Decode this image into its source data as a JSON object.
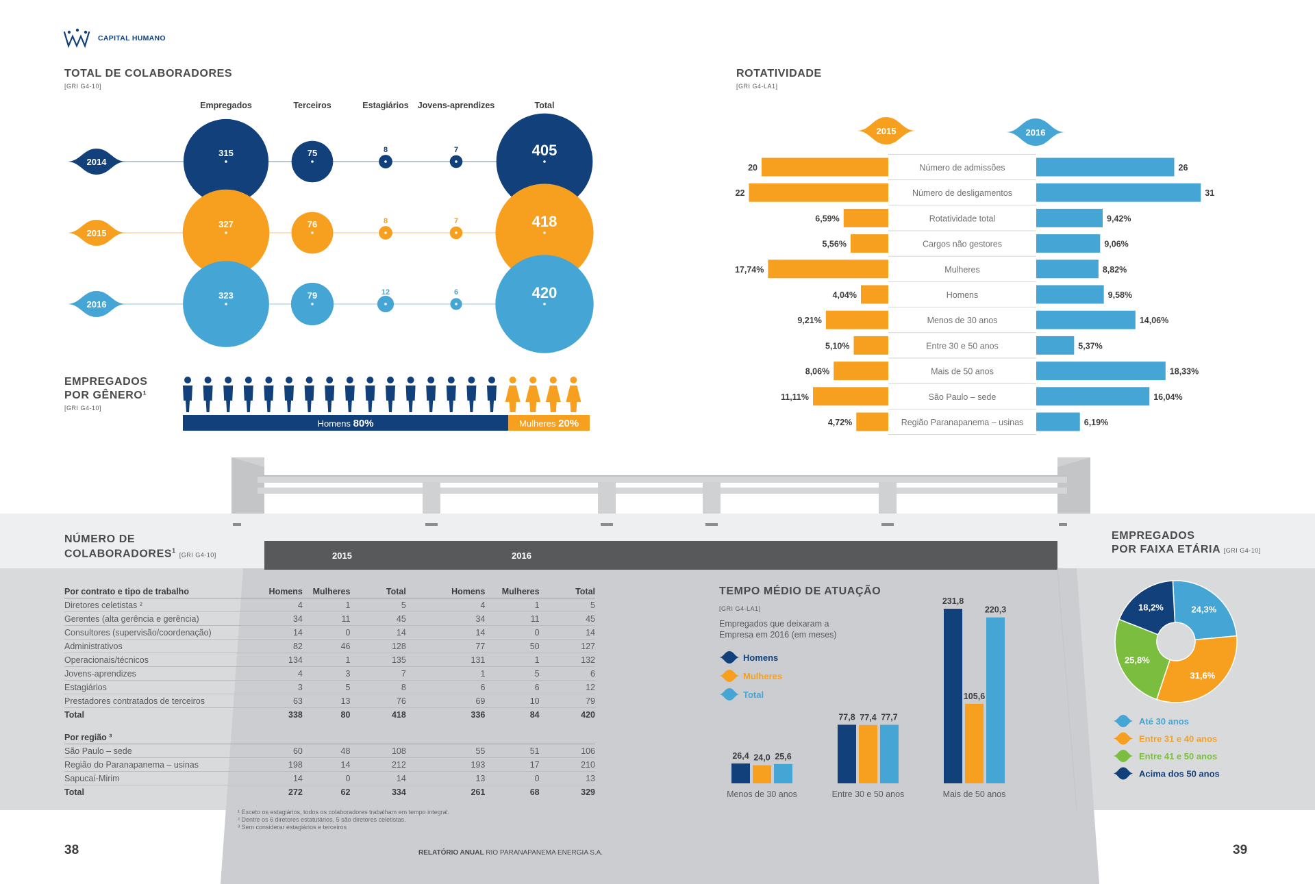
{
  "header": {
    "section_title": "CAPITAL HUMANO",
    "logo_icon": "company-logo-icon"
  },
  "total": {
    "title": "TOTAL DE COLABORADORES",
    "gri": "[GRI G4-10]",
    "columns": [
      "Empregados",
      "Terceiros",
      "Estagiários",
      "Jovens-aprendizes",
      "Total"
    ],
    "rows": [
      {
        "year": "2014",
        "values": [
          "315",
          "75",
          "8",
          "7"
        ],
        "total": "405",
        "color": "#12407a"
      },
      {
        "year": "2015",
        "values": [
          "327",
          "76",
          "8",
          "7"
        ],
        "total": "418",
        "color": "#f7a01f"
      },
      {
        "year": "2016",
        "values": [
          "323",
          "79",
          "12",
          "6"
        ],
        "total": "420",
        "color": "#45a5d4"
      }
    ]
  },
  "genero": {
    "title_line1": "EMPREGADOS",
    "title_line2": "POR GÊNERO¹",
    "gri": "[GRI G4-10]",
    "men_label": "Homens",
    "men_pct": "80%",
    "women_label": "Mulheres",
    "women_pct": "20%",
    "men_icons": 16,
    "women_icons": 4
  },
  "rotatividade": {
    "title": "ROTATIVIDADE",
    "gri": "[GRI G4-LA1]",
    "year_left": "2015",
    "year_right": "2016",
    "rows": [
      {
        "label": "Número de admissões",
        "left": "20",
        "right": "26"
      },
      {
        "label": "Número de desligamentos",
        "left": "22",
        "right": "31"
      },
      {
        "label": "Rotatividade total",
        "left": "6,59%",
        "right": "9,42%"
      },
      {
        "label": "Cargos não gestores",
        "left": "5,56%",
        "right": "9,06%"
      },
      {
        "label": "Mulheres",
        "left": "17,74%",
        "right": "8,82%"
      },
      {
        "label": "Homens",
        "left": "4,04%",
        "right": "9,58%"
      },
      {
        "label": "Menos de 30 anos",
        "left": "9,21%",
        "right": "14,06%"
      },
      {
        "label": "Entre 30 e 50 anos",
        "left": "5,10%",
        "right": "5,37%"
      },
      {
        "label": "Mais de 50 anos",
        "left": "8,06%",
        "right": "18,33%"
      },
      {
        "label": "São Paulo – sede",
        "left": "11,11%",
        "right": "16,04%"
      },
      {
        "label": "Região Paranapanema – usinas",
        "left": "4,72%",
        "right": "6,19%"
      }
    ]
  },
  "numero": {
    "title_line1": "NÚMERO DE",
    "title_line2": "COLABORADORES",
    "sup": "1",
    "gri": "[GRI G4-10]",
    "year_a": "2015",
    "year_b": "2016",
    "col_heads": [
      "Homens",
      "Mulheres",
      "Total",
      "Homens",
      "Mulheres",
      "Total"
    ],
    "section1": "Por contrato e tipo de trabalho",
    "rows1": [
      [
        "Diretores celetistas ²",
        "4",
        "1",
        "5",
        "4",
        "1",
        "5"
      ],
      [
        "Gerentes (alta gerência e gerência)",
        "34",
        "11",
        "45",
        "34",
        "11",
        "45"
      ],
      [
        "Consultores (supervisão/coordenação)",
        "14",
        "0",
        "14",
        "14",
        "0",
        "14"
      ],
      [
        "Administrativos",
        "82",
        "46",
        "128",
        "77",
        "50",
        "127"
      ],
      [
        "Operacionais/técnicos",
        "134",
        "1",
        "135",
        "131",
        "1",
        "132"
      ],
      [
        "Jovens-aprendizes",
        "4",
        "3",
        "7",
        "1",
        "5",
        "6"
      ],
      [
        "Estagiários",
        "3",
        "5",
        "8",
        "6",
        "6",
        "12"
      ],
      [
        "Prestadores contratados de terceiros",
        "63",
        "13",
        "76",
        "69",
        "10",
        "79"
      ]
    ],
    "total1": [
      "Total",
      "338",
      "80",
      "418",
      "336",
      "84",
      "420"
    ],
    "section2": "Por região ³",
    "rows2": [
      [
        "São Paulo – sede",
        "60",
        "48",
        "108",
        "55",
        "51",
        "106"
      ],
      [
        "Região do Paranapanema – usinas",
        "198",
        "14",
        "212",
        "193",
        "17",
        "210"
      ],
      [
        "Sapucaí-Mirim",
        "14",
        "0",
        "14",
        "13",
        "0",
        "13"
      ]
    ],
    "total2": [
      "Total",
      "272",
      "62",
      "334",
      "261",
      "68",
      "329"
    ],
    "footnotes": [
      "¹ Exceto os estagiários, todos os colaboradores trabalham em tempo integral.",
      "² Dentre os 6 diretores estatutários, 5 são diretores celetistas.",
      "³ Sem considerar estagiários e terceiros"
    ]
  },
  "tempo": {
    "title": "TEMPO MÉDIO DE ATUAÇÃO",
    "gri": "[GRI G4-LA1]",
    "subtitle_line1": "Empregados que deixaram a",
    "subtitle_line2": "Empresa em 2016 (em meses)",
    "legend": [
      "Homens",
      "Mulheres",
      "Total"
    ]
  },
  "faixa": {
    "title_line1": "EMPREGADOS",
    "title_line2": "POR FAIXA ETÁRIA",
    "gri": "[GRI G4-10]"
  },
  "footer": {
    "page_left": "38",
    "page_right": "39",
    "report_bold": "RELATÓRIO ANUAL",
    "report_rest": "RIO PARANAPANEMA ENERGIA S.A."
  },
  "chart_data": [
    {
      "type": "bar",
      "title": "TEMPO MÉDIO DE ATUAÇÃO",
      "categories": [
        "Menos de 30 anos",
        "Entre 30 e 50 anos",
        "Mais de 50 anos"
      ],
      "series": [
        {
          "name": "Homens",
          "color": "#12407a",
          "values": [
            26.4,
            77.8,
            231.8
          ],
          "labels": [
            "26,4",
            "77,8",
            "231,8"
          ]
        },
        {
          "name": "Mulheres",
          "color": "#f7a01f",
          "values": [
            24.0,
            77.4,
            105.6
          ],
          "labels": [
            "24,0",
            "77,4",
            "105,6"
          ]
        },
        {
          "name": "Total",
          "color": "#45a5d4",
          "values": [
            25.6,
            77.7,
            220.3
          ],
          "labels": [
            "25,6",
            "77,7",
            "220,3"
          ]
        }
      ],
      "ylim": [
        0,
        240
      ],
      "legend": "top-left"
    },
    {
      "type": "pie",
      "title": "EMPREGADOS POR FAIXA ETÁRIA",
      "slices": [
        {
          "name": "Até 30 anos",
          "value": 24.3,
          "label": "24,3%",
          "color": "#45a5d4"
        },
        {
          "name": "Entre 31 e 40 anos",
          "value": 31.6,
          "label": "31,6%",
          "color": "#f7a01f"
        },
        {
          "name": "Entre 41 e 50 anos",
          "value": 25.8,
          "label": "25,8%",
          "color": "#7bbd3f"
        },
        {
          "name": "Acima dos 50 anos",
          "value": 18.2,
          "label": "18,2%",
          "color": "#12407a"
        }
      ],
      "legend": "bottom"
    },
    {
      "type": "bar",
      "title": "ROTATIVIDADE",
      "orientation": "horizontal-diverging",
      "categories": [
        "Número de admissões",
        "Número de desligamentos",
        "Rotatividade total",
        "Cargos não gestores",
        "Mulheres",
        "Homens",
        "Menos de 30 anos",
        "Entre 30 e 50 anos",
        "Mais de 50 anos",
        "São Paulo – sede",
        "Região Paranapanema – usinas"
      ],
      "series": [
        {
          "name": "2015",
          "color": "#f7a01f",
          "values": [
            20,
            22,
            6.59,
            5.56,
            17.74,
            4.04,
            9.21,
            5.1,
            8.06,
            11.11,
            4.72
          ]
        },
        {
          "name": "2016",
          "color": "#45a5d4",
          "values": [
            26,
            31,
            9.42,
            9.06,
            8.82,
            9.58,
            14.06,
            5.37,
            18.33,
            16.04,
            6.19
          ]
        }
      ]
    },
    {
      "type": "bubble",
      "title": "TOTAL DE COLABORADORES",
      "categories": [
        "Empregados",
        "Terceiros",
        "Estagiários",
        "Jovens-aprendizes",
        "Total"
      ],
      "series": [
        {
          "name": "2014",
          "values": [
            315,
            75,
            8,
            7,
            405
          ]
        },
        {
          "name": "2015",
          "values": [
            327,
            76,
            8,
            7,
            418
          ]
        },
        {
          "name": "2016",
          "values": [
            323,
            79,
            12,
            6,
            420
          ]
        }
      ]
    }
  ]
}
